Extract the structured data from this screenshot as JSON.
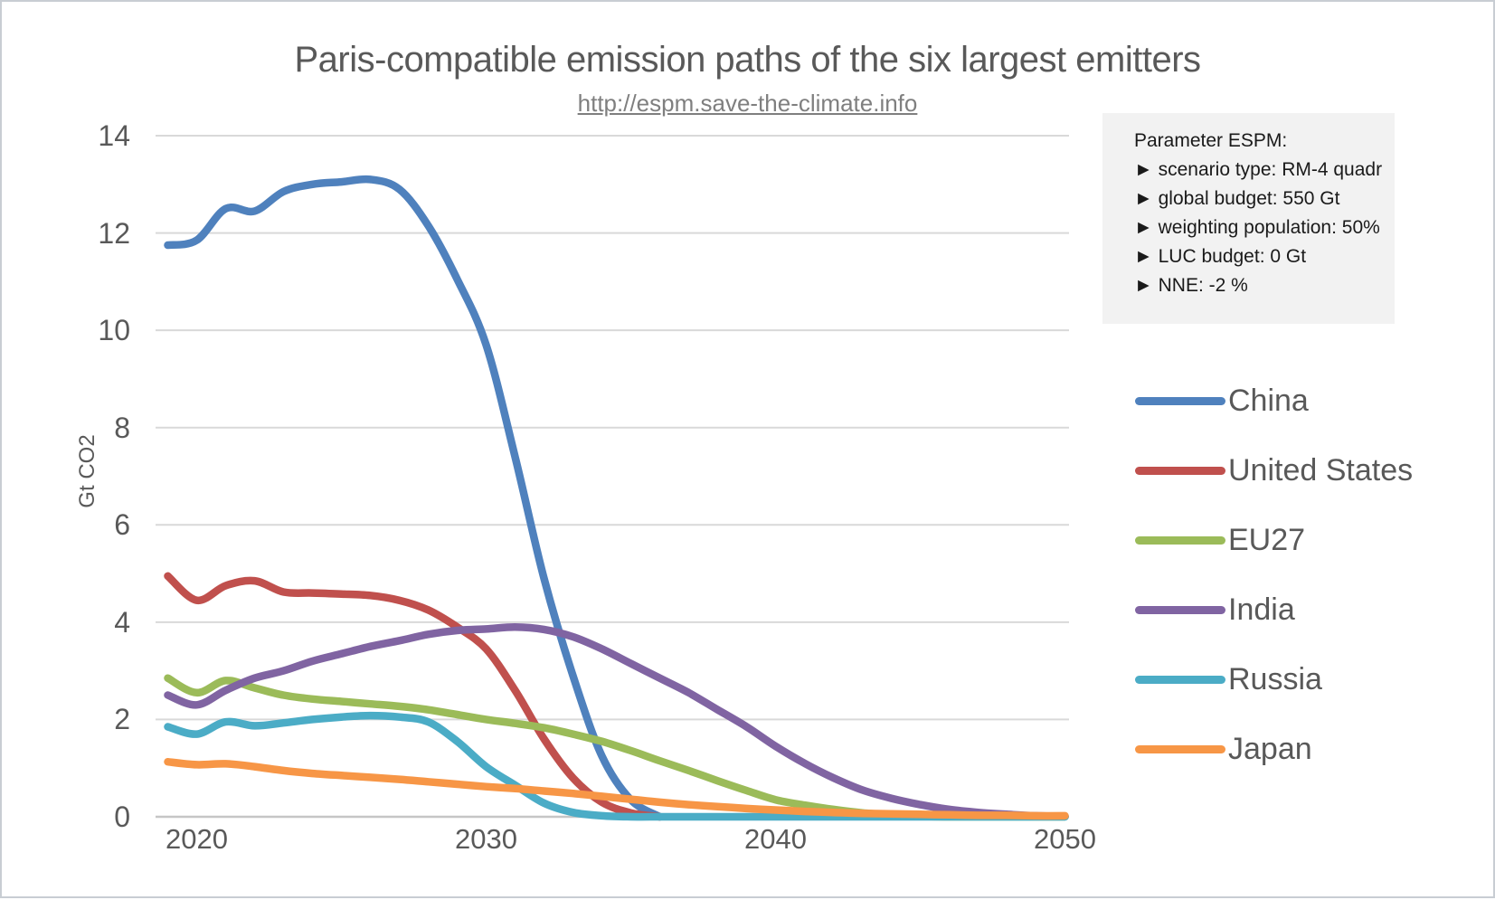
{
  "page": {
    "title": "Paris-compatible emission paths of the six largest emitters",
    "subtitle_link": "http://espm.save-the-climate.info"
  },
  "params_box": {
    "header": "Parameter ESPM:",
    "lines": [
      "► scenario type: RM-4 quadr",
      "► global budget: 550 Gt",
      "► weighting population: 50%",
      "► LUC budget: 0 Gt",
      "► NNE: -2 %"
    ]
  },
  "chart_data": {
    "type": "line",
    "title": "Paris-compatible emission paths of the six largest emitters",
    "subtitle": "http://espm.save-the-climate.info",
    "xlabel": "",
    "ylabel": "Gt CO2",
    "ylim": [
      0,
      14
    ],
    "xlim": [
      2019,
      2050
    ],
    "grid": "horizontal",
    "legend_position": "right",
    "y_ticks": [
      0,
      2,
      4,
      6,
      8,
      10,
      12,
      14
    ],
    "x_ticks": [
      2020,
      2030,
      2040,
      2050
    ],
    "x_start_year": 2019,
    "x_step_years": 1,
    "gridline_color": "#d9d9d9",
    "axisline_color": "#c6c6c6",
    "series": [
      {
        "name": "China",
        "color": "#4F81BD",
        "values": [
          11.75,
          11.85,
          12.5,
          12.45,
          12.85,
          13.0,
          13.05,
          13.1,
          12.9,
          12.15,
          11.05,
          9.7,
          7.4,
          4.9,
          2.9,
          1.25,
          0.35,
          0,
          null,
          null,
          null,
          null,
          null,
          null,
          null,
          null,
          null,
          null,
          null,
          null,
          null,
          null
        ]
      },
      {
        "name": "United States",
        "color": "#C0504D",
        "values": [
          4.95,
          4.45,
          4.75,
          4.85,
          4.62,
          4.6,
          4.58,
          4.55,
          4.45,
          4.25,
          3.9,
          3.45,
          2.6,
          1.6,
          0.8,
          0.3,
          0.08,
          0,
          null,
          null,
          null,
          null,
          null,
          null,
          null,
          null,
          null,
          null,
          null,
          null,
          null,
          null
        ]
      },
      {
        "name": "EU27",
        "color": "#9BBB59",
        "values": [
          2.85,
          2.55,
          2.8,
          2.65,
          2.5,
          2.42,
          2.37,
          2.32,
          2.27,
          2.2,
          2.1,
          2.0,
          1.92,
          1.83,
          1.7,
          1.55,
          1.36,
          1.15,
          0.95,
          0.74,
          0.54,
          0.35,
          0.24,
          0.15,
          0.08,
          0.04,
          0.01,
          0,
          0,
          0,
          0,
          0
        ]
      },
      {
        "name": "India",
        "color": "#8064A2",
        "values": [
          2.5,
          2.3,
          2.6,
          2.85,
          3.0,
          3.2,
          3.35,
          3.5,
          3.62,
          3.75,
          3.83,
          3.86,
          3.9,
          3.85,
          3.7,
          3.45,
          3.15,
          2.85,
          2.55,
          2.2,
          1.85,
          1.45,
          1.1,
          0.8,
          0.55,
          0.38,
          0.25,
          0.15,
          0.09,
          0.05,
          0.02,
          0.01
        ]
      },
      {
        "name": "Russia",
        "color": "#4BACC6",
        "values": [
          1.85,
          1.7,
          1.95,
          1.87,
          1.93,
          2.0,
          2.05,
          2.08,
          2.05,
          1.95,
          1.55,
          1.03,
          0.65,
          0.28,
          0.09,
          0.02,
          0,
          0,
          0,
          0,
          0,
          0,
          0,
          0,
          0,
          0,
          0,
          0,
          0,
          0,
          0,
          0
        ]
      },
      {
        "name": "Japan",
        "color": "#F79646",
        "values": [
          1.13,
          1.07,
          1.09,
          1.03,
          0.95,
          0.89,
          0.85,
          0.81,
          0.77,
          0.72,
          0.67,
          0.62,
          0.58,
          0.53,
          0.48,
          0.42,
          0.36,
          0.3,
          0.25,
          0.21,
          0.17,
          0.14,
          0.11,
          0.09,
          0.07,
          0.06,
          0.05,
          0.04,
          0.03,
          0.03,
          0.02,
          0.02
        ]
      }
    ]
  }
}
